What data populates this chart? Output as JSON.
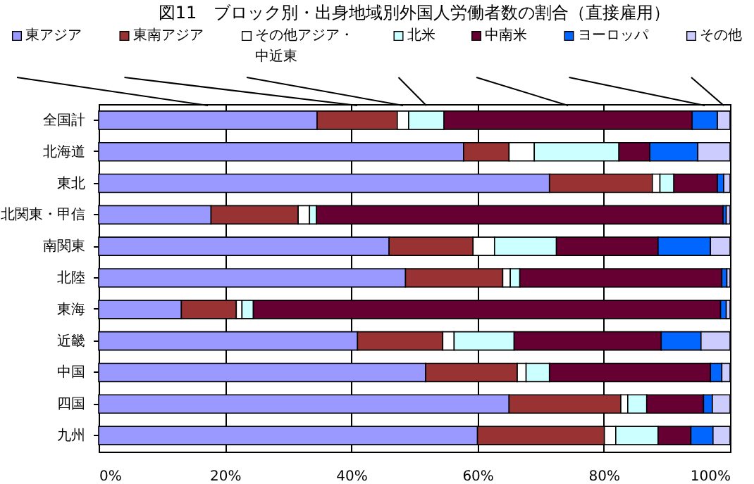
{
  "chart_data": {
    "type": "bar",
    "orientation": "horizontal",
    "stacked": true,
    "title": "図11　ブロック別・出身地域別外国人労働者数の割合（直接雇用）",
    "categories": [
      "全国計",
      "北海道",
      "東北",
      "北関東・甲信",
      "南関東",
      "北陸",
      "東海",
      "近畿",
      "中国",
      "四国",
      "九州"
    ],
    "series": [
      {
        "name": "東アジア",
        "color": "#9999ff",
        "values": [
          34.6,
          57.8,
          71.4,
          17.8,
          46.0,
          48.6,
          13.1,
          41.0,
          51.8,
          65.0,
          60.0
        ]
      },
      {
        "name": "東南アジア",
        "color": "#993333",
        "values": [
          12.7,
          7.2,
          16.3,
          13.8,
          13.3,
          15.4,
          8.7,
          13.5,
          14.5,
          17.7,
          20.1
        ]
      },
      {
        "name": "その他アジア・中近東",
        "color": "#ffffff",
        "values": [
          1.8,
          4.0,
          1.2,
          1.8,
          3.4,
          1.2,
          0.9,
          1.8,
          1.4,
          1.1,
          1.8
        ]
      },
      {
        "name": "北米",
        "color": "#ccffff",
        "values": [
          5.6,
          13.4,
          2.2,
          1.1,
          9.8,
          1.5,
          1.8,
          9.5,
          3.7,
          3.0,
          6.7
        ]
      },
      {
        "name": "中南米",
        "color": "#660033",
        "values": [
          39.3,
          4.9,
          6.9,
          64.4,
          16.1,
          32.0,
          74.0,
          23.3,
          25.5,
          9.0,
          5.2
        ]
      },
      {
        "name": "ヨーロッパ",
        "color": "#0066ff",
        "values": [
          4.0,
          7.6,
          1.0,
          0.5,
          8.3,
          0.8,
          0.9,
          6.3,
          1.8,
          1.4,
          3.5
        ]
      },
      {
        "name": "その他",
        "color": "#ccccff",
        "values": [
          2.0,
          5.1,
          1.0,
          0.6,
          3.1,
          0.5,
          0.6,
          4.6,
          1.3,
          2.8,
          2.7
        ]
      }
    ],
    "xlim": [
      0,
      100
    ],
    "xticks": [
      {
        "value": 0,
        "label": "0%"
      },
      {
        "value": 20,
        "label": "20%"
      },
      {
        "value": 40,
        "label": "40%"
      },
      {
        "value": 60,
        "label": "60%"
      },
      {
        "value": 80,
        "label": "80%"
      },
      {
        "value": 100,
        "label": "100%"
      }
    ],
    "grid": "x",
    "legend": "top"
  }
}
